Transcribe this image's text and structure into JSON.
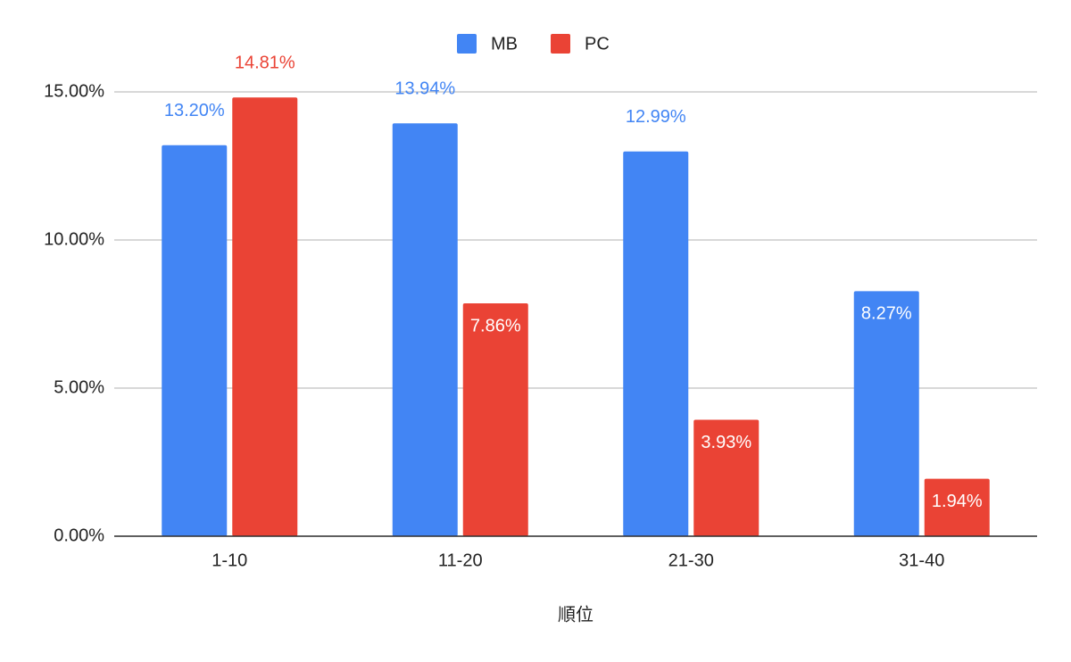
{
  "chart_data": {
    "type": "bar",
    "x_label": "順位",
    "categories": [
      "1-10",
      "11-20",
      "21-30",
      "31-40"
    ],
    "series": [
      {
        "name": "MB",
        "color": "#4285f4",
        "values": [
          13.2,
          13.94,
          12.99,
          8.27
        ],
        "value_labels": [
          "13.20%",
          "13.94%",
          "12.99%",
          "8.27%"
        ]
      },
      {
        "name": "PC",
        "color": "#ea4335",
        "values": [
          14.81,
          7.86,
          3.93,
          1.94
        ],
        "value_labels": [
          "14.81%",
          "7.86%",
          "3.93%",
          "1.94%"
        ]
      }
    ],
    "ylim": [
      0,
      15
    ],
    "yticks": [
      {
        "value": 0,
        "label": "0.00%"
      },
      {
        "value": 5,
        "label": "5.00%"
      },
      {
        "value": 10,
        "label": "10.00%"
      },
      {
        "value": 15,
        "label": "15.00%"
      }
    ],
    "grid": true,
    "legend": "top"
  }
}
